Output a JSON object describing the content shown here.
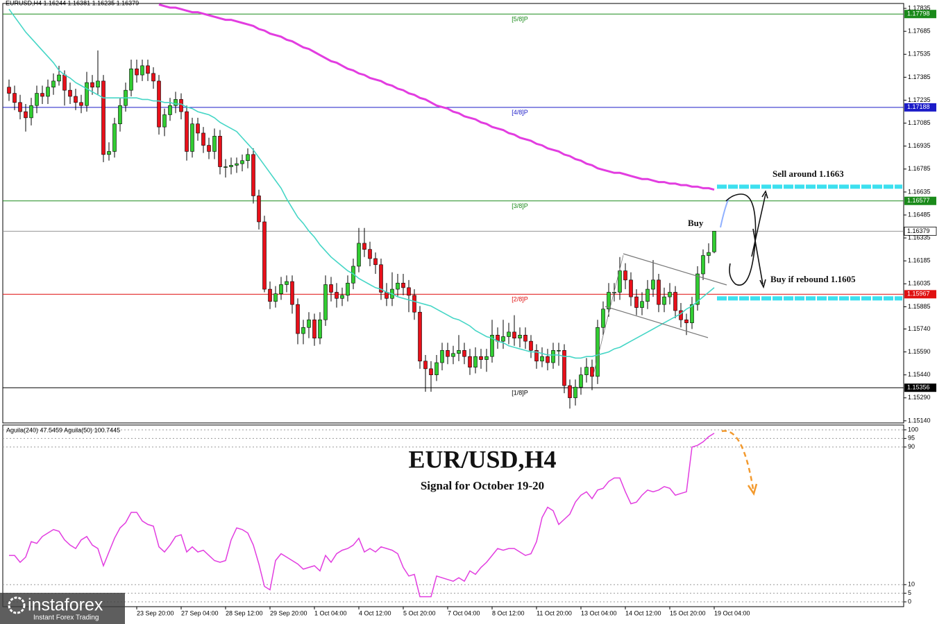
{
  "chart_data": [
    {
      "type": "candlestick",
      "header": "EURUSD,H4  1.16244 1.16381 1.16235 1.16379",
      "title": "EUR/USD,H4",
      "subtitle": "Signal for October 19-20",
      "annotations": [
        "Sell around 1.1663",
        "Buy",
        "Buy if rebound 1.1605"
      ],
      "categories": [
        null,
        null,
        null,
        null,
        null,
        null,
        null,
        null,
        null,
        null,
        null,
        null,
        null,
        null,
        null,
        null,
        null,
        null,
        null,
        null,
        null,
        null,
        null,
        "23 Sep 20:00",
        null,
        null,
        null,
        null,
        null,
        null,
        null,
        "27 Sep 04:00",
        null,
        null,
        null,
        null,
        null,
        null,
        null,
        "28 Sep 12:00",
        null,
        null,
        null,
        null,
        null,
        null,
        null,
        "29 Sep 20:00",
        null,
        null,
        null,
        null,
        null,
        null,
        null,
        "1 Oct 04:00",
        null,
        null,
        null,
        null,
        null,
        null,
        null,
        "4 Oct 12:00",
        null,
        null,
        null,
        null,
        null,
        null,
        null,
        "5 Oct 20:00",
        null,
        null,
        null,
        null,
        null,
        null,
        null,
        "7 Oct 04:00",
        null,
        null,
        null,
        null,
        null,
        null,
        null,
        "8 Oct 12:00",
        null,
        null,
        null,
        null,
        null,
        null,
        null,
        "11 Oct 20:00",
        null,
        null,
        null,
        null,
        null,
        null,
        null,
        "13 Oct 04:00",
        null,
        null,
        null,
        null,
        null,
        null,
        null,
        "14 Oct 12:00",
        null,
        null,
        null,
        null,
        null,
        null,
        null,
        "15 Oct 20:00",
        null,
        null,
        null,
        null,
        null,
        null,
        null,
        "19 Oct 04:00"
      ],
      "open": [
        1.1732,
        1.1728,
        1.1722,
        1.1716,
        1.1712,
        1.172,
        1.1728,
        1.1726,
        1.1732,
        1.1736,
        1.174,
        1.173,
        1.1726,
        1.1722,
        1.172,
        1.1735,
        1.1732,
        1.1736,
        1.1688,
        1.169,
        1.1708,
        1.172,
        1.173,
        1.1744,
        1.174,
        1.1746,
        1.1741,
        1.1736,
        1.1706,
        1.1714,
        1.172,
        1.1724,
        1.1716,
        1.169,
        1.1708,
        1.1702,
        1.1694,
        1.169,
        1.17,
        1.168,
        1.168,
        1.1681,
        1.1682,
        1.1684,
        1.1688,
        1.1661,
        1.1644,
        1.16,
        1.1592,
        1.1597,
        1.1603,
        1.1605,
        1.159,
        1.1571,
        1.1575,
        1.158,
        1.1568,
        1.158,
        1.1603,
        1.1598,
        1.1594,
        1.1596,
        1.1604,
        1.1615,
        1.163,
        1.1626,
        1.162,
        1.1616,
        1.1598,
        1.1594,
        1.16,
        1.1604,
        1.1601,
        1.1596,
        1.1585,
        1.1553,
        1.1548,
        1.1544,
        1.1552,
        1.156,
        1.1556,
        1.1558,
        1.156,
        1.1556,
        1.1549,
        1.1556,
        1.1554,
        1.1556,
        1.157,
        1.1566,
        1.1569,
        1.1572,
        1.1568,
        1.157,
        1.1566,
        1.156,
        1.1553,
        1.1556,
        1.1552,
        1.156,
        1.156,
        1.1537,
        1.1529,
        1.1536,
        1.1544,
        1.1549,
        1.1543,
        1.1575,
        1.1587,
        1.1598,
        1.1598,
        1.1612,
        1.1606,
        1.1595,
        1.1588,
        1.1592,
        1.16,
        1.1606,
        1.159,
        1.1595,
        1.1598,
        1.1586,
        1.158,
        1.1578,
        1.159,
        1.161,
        1.1622,
        1.16244
      ],
      "high": [
        1.1737,
        1.1733,
        1.1727,
        1.1721,
        1.1725,
        1.1733,
        1.1733,
        1.1737,
        1.1741,
        1.1746,
        1.1743,
        1.1735,
        1.1731,
        1.1727,
        1.1742,
        1.174,
        1.1756,
        1.174,
        1.1696,
        1.1712,
        1.1725,
        1.1735,
        1.175,
        1.175,
        1.175,
        1.175,
        1.1745,
        1.174,
        1.1718,
        1.1725,
        1.1729,
        1.1728,
        1.172,
        1.1712,
        1.1712,
        1.1706,
        1.1699,
        1.1705,
        1.1704,
        1.1685,
        1.1686,
        1.1686,
        1.1688,
        1.1692,
        1.1692,
        1.1665,
        1.1648,
        1.1605,
        1.1602,
        1.1608,
        1.1609,
        1.1609,
        1.1594,
        1.158,
        1.1585,
        1.1584,
        1.1585,
        1.1609,
        1.1608,
        1.1604,
        1.1601,
        1.1609,
        1.162,
        1.164,
        1.164,
        1.1631,
        1.1624,
        1.162,
        1.1604,
        1.1611,
        1.161,
        1.161,
        1.1606,
        1.16,
        1.1589,
        1.1557,
        1.1553,
        1.1557,
        1.1565,
        1.1565,
        1.1563,
        1.157,
        1.1565,
        1.1561,
        1.1562,
        1.1561,
        1.1561,
        1.158,
        1.1575,
        1.158,
        1.1578,
        1.1583,
        1.1575,
        1.1575,
        1.157,
        1.1564,
        1.1562,
        1.1561,
        1.1565,
        1.1565,
        1.1564,
        1.1541,
        1.1541,
        1.1549,
        1.1555,
        1.1554,
        1.158,
        1.1592,
        1.1604,
        1.1604,
        1.1621,
        1.1617,
        1.1611,
        1.16,
        1.1598,
        1.1606,
        1.1619,
        1.161,
        1.1601,
        1.1604,
        1.1602,
        1.1591,
        1.1584,
        1.1595,
        1.1615,
        1.1626,
        1.163,
        1.16381
      ],
      "low": [
        1.1723,
        1.1717,
        1.1711,
        1.1703,
        1.1707,
        1.1715,
        1.1721,
        1.1721,
        1.1727,
        1.1733,
        1.172,
        1.1721,
        1.1717,
        1.1715,
        1.1716,
        1.1727,
        1.1727,
        1.1683,
        1.1684,
        1.1686,
        1.1703,
        1.1716,
        1.1726,
        1.1735,
        1.1736,
        1.1736,
        1.1731,
        1.1701,
        1.17,
        1.171,
        1.1715,
        1.1711,
        1.1684,
        1.1686,
        1.1697,
        1.1689,
        1.1685,
        1.1685,
        1.1675,
        1.1673,
        1.1675,
        1.1676,
        1.1677,
        1.1679,
        1.1656,
        1.1639,
        1.1598,
        1.1587,
        1.1588,
        1.1593,
        1.1598,
        1.1584,
        1.1564,
        1.1564,
        1.1568,
        1.1563,
        1.1564,
        1.1576,
        1.1592,
        1.1588,
        1.1589,
        1.1592,
        1.16,
        1.1611,
        1.1621,
        1.1615,
        1.161,
        1.1593,
        1.1589,
        1.1589,
        1.1595,
        1.1596,
        1.1585,
        1.158,
        1.1548,
        1.1533,
        1.1533,
        1.154,
        1.1547,
        1.1551,
        1.1551,
        1.1553,
        1.1551,
        1.1544,
        1.1545,
        1.1548,
        1.1546,
        1.1552,
        1.1561,
        1.1561,
        1.1564,
        1.1563,
        1.1562,
        1.1561,
        1.1555,
        1.1548,
        1.1549,
        1.1547,
        1.1548,
        1.155,
        1.1532,
        1.1522,
        1.1524,
        1.1531,
        1.1539,
        1.1534,
        1.1538,
        1.157,
        1.1582,
        1.1592,
        1.1593,
        1.16,
        1.1589,
        1.1583,
        1.1583,
        1.1587,
        1.1595,
        1.1585,
        1.1585,
        1.159,
        1.1581,
        1.1575,
        1.157,
        1.1574,
        1.1586,
        1.1606,
        1.1617,
        1.16235
      ],
      "close": [
        1.1728,
        1.1722,
        1.1716,
        1.1712,
        1.172,
        1.1728,
        1.1726,
        1.1732,
        1.1736,
        1.174,
        1.173,
        1.1726,
        1.1722,
        1.172,
        1.1735,
        1.1732,
        1.1736,
        1.1688,
        1.169,
        1.1708,
        1.172,
        1.173,
        1.1744,
        1.174,
        1.1746,
        1.1741,
        1.1736,
        1.1706,
        1.1714,
        1.172,
        1.1724,
        1.1716,
        1.169,
        1.1708,
        1.1702,
        1.1694,
        1.169,
        1.17,
        1.168,
        1.168,
        1.1681,
        1.1682,
        1.1684,
        1.1688,
        1.1661,
        1.1644,
        1.16,
        1.1592,
        1.1597,
        1.1603,
        1.1605,
        1.159,
        1.1571,
        1.1575,
        1.158,
        1.1568,
        1.158,
        1.1603,
        1.1598,
        1.1594,
        1.1596,
        1.1604,
        1.1615,
        1.163,
        1.1626,
        1.162,
        1.1616,
        1.1598,
        1.1594,
        1.16,
        1.1604,
        1.1601,
        1.1596,
        1.1585,
        1.1553,
        1.1548,
        1.1544,
        1.1552,
        1.156,
        1.1556,
        1.1558,
        1.156,
        1.1556,
        1.1549,
        1.1556,
        1.1554,
        1.1556,
        1.157,
        1.1566,
        1.1569,
        1.1572,
        1.1568,
        1.157,
        1.1566,
        1.156,
        1.1553,
        1.1556,
        1.1552,
        1.156,
        1.156,
        1.1537,
        1.1529,
        1.1536,
        1.1544,
        1.1549,
        1.1543,
        1.1575,
        1.1587,
        1.1598,
        1.1598,
        1.1612,
        1.1606,
        1.1595,
        1.1588,
        1.1592,
        1.16,
        1.1606,
        1.159,
        1.1595,
        1.1598,
        1.1586,
        1.158,
        1.1578,
        1.159,
        1.161,
        1.1622,
        1.1624,
        1.16379
      ],
      "up_color": "#32cd32",
      "down_color": "#e8101a",
      "series": [
        {
          "color": "#e23de0",
          "width": 3,
          "values": [
            null,
            null,
            null,
            null,
            null,
            null,
            null,
            null,
            null,
            null,
            null,
            null,
            null,
            null,
            null,
            null,
            null,
            null,
            null,
            null,
            null,
            null,
            null,
            null,
            null,
            null,
            null,
            1.1786,
            1.1785,
            1.1784,
            1.1784,
            1.1783,
            1.1782,
            1.1781,
            1.1781,
            1.178,
            1.1779,
            1.1778,
            1.1777,
            1.1776,
            1.1776,
            1.1775,
            1.1774,
            1.1773,
            1.1772,
            1.177,
            1.1769,
            1.1767,
            1.1766,
            1.1765,
            1.1763,
            1.1762,
            1.176,
            1.1758,
            1.1757,
            1.1755,
            1.1753,
            1.1751,
            1.1749,
            1.1748,
            1.1746,
            1.1744,
            1.1743,
            1.1741,
            1.174,
            1.1738,
            1.1737,
            1.1736,
            1.1734,
            1.1733,
            1.1731,
            1.173,
            1.1728,
            1.1727,
            1.1725,
            1.1724,
            1.1722,
            1.172,
            1.1719,
            1.1718,
            1.1716,
            1.1715,
            1.1713,
            1.1712,
            1.1711,
            1.1709,
            1.1708,
            1.1706,
            1.1705,
            1.1704,
            1.1702,
            1.1701,
            1.1699,
            1.1698,
            1.1697,
            1.1695,
            1.1694,
            1.1692,
            1.1691,
            1.169,
            1.1688,
            1.1687,
            1.1685,
            1.1684,
            1.1682,
            1.1681,
            1.1679,
            1.1678,
            1.1677,
            1.1676,
            1.1676,
            1.1675,
            1.1674,
            1.1673,
            1.1672,
            1.1672,
            1.1671,
            1.167,
            1.167,
            1.1669,
            1.1669,
            1.1668,
            1.1668,
            1.1667,
            1.1667,
            1.1666,
            1.1666,
            1.1665
          ]
        },
        {
          "color": "#45d6c6",
          "width": 1.6,
          "values": [
            1.1783,
            1.1778,
            1.1773,
            1.1768,
            1.1764,
            1.176,
            1.1756,
            1.1752,
            1.1748,
            1.1743,
            1.174,
            1.1738,
            1.1735,
            1.1733,
            1.1731,
            1.1729,
            1.1727,
            1.1725,
            1.1725,
            1.1725,
            1.1725,
            1.1725,
            1.1725,
            1.1725,
            1.1724,
            1.1724,
            1.1723,
            1.1723,
            1.1722,
            1.1722,
            1.1721,
            1.1721,
            1.1719,
            1.1718,
            1.1716,
            1.1715,
            1.1714,
            1.1712,
            1.1709,
            1.1707,
            1.1705,
            1.1703,
            1.1699,
            1.1695,
            1.1691,
            1.1686,
            1.1681,
            1.1676,
            1.1671,
            1.1666,
            1.1659,
            1.1653,
            1.1647,
            1.1643,
            1.1638,
            1.1634,
            1.1629,
            1.1625,
            1.1621,
            1.1618,
            1.1615,
            1.1612,
            1.161,
            1.1607,
            1.1605,
            1.1603,
            1.1601,
            1.16,
            1.1598,
            1.1597,
            1.1595,
            1.1594,
            1.1593,
            1.1592,
            1.1591,
            1.159,
            1.1589,
            1.1587,
            1.1585,
            1.1583,
            1.1581,
            1.158,
            1.1578,
            1.1576,
            1.1573,
            1.1571,
            1.1569,
            1.1568,
            1.1566,
            1.1565,
            1.1563,
            1.1562,
            1.1561,
            1.156,
            1.1559,
            1.1559,
            1.1558,
            1.1557,
            1.1557,
            1.1557,
            1.1556,
            1.1556,
            1.1555,
            1.1555,
            1.1556,
            1.1556,
            1.1557,
            1.1558,
            1.1559,
            1.1561,
            1.1562,
            1.1564,
            1.1566,
            1.1568,
            1.157,
            1.1572,
            1.1574,
            1.1576,
            1.1578,
            1.158,
            1.1582,
            1.1584,
            1.1587,
            1.1589,
            1.1592,
            1.1595,
            1.1598,
            1.1601
          ]
        }
      ],
      "levels": [
        {
          "label": "[5/8]P",
          "value": 1.17798,
          "color": "#1a8a1a"
        },
        {
          "label": "[4/8]P",
          "value": 1.17188,
          "color": "#1c1cc8"
        },
        {
          "label": "[3/8]P",
          "value": 1.16577,
          "color": "#1a8a1a"
        },
        {
          "label": "[2/8]P",
          "value": 1.15967,
          "color": "#e01010"
        },
        {
          "label": "[1/8]P",
          "value": 1.15356,
          "color": "#000000"
        }
      ],
      "bid": 1.16379,
      "zones": [
        1.1667,
        1.1594
      ],
      "zone_color": "#3de0ef",
      "ylim": [
        1.15126,
        1.17867
      ],
      "yticks": [
        1.17835,
        1.17685,
        1.17535,
        1.17385,
        1.17235,
        1.17085,
        1.16935,
        1.16785,
        1.16635,
        1.16485,
        1.16335,
        1.16185,
        1.16035,
        1.15885,
        {
          "value": 1.1574,
          "label": "1.15740"
        },
        {
          "value": 1.1559,
          "label": "1.15590"
        },
        {
          "value": 1.1544,
          "label": "1.15440"
        },
        {
          "value": 1.1529,
          "label": "1.15290"
        },
        {
          "value": 1.1514,
          "label": "1.15140"
        }
      ]
    },
    {
      "type": "line",
      "header": "Aguila(240) 47.5459  Aguila(50) 100.7445",
      "color": "#e23de0",
      "values": [
        27,
        27,
        23,
        26,
        35,
        34,
        38,
        40,
        42,
        41,
        36,
        33,
        31,
        36,
        38,
        33,
        31,
        21,
        29,
        37,
        43,
        46,
        52,
        52,
        47,
        45,
        44,
        32,
        29,
        33,
        38,
        39,
        29,
        32,
        29,
        30,
        27,
        24,
        23,
        24,
        36,
        43,
        42,
        40,
        33,
        22,
        9,
        7,
        24,
        28,
        26,
        24,
        22,
        19,
        20,
        21,
        18,
        27,
        23,
        28,
        30,
        31,
        33,
        37,
        29,
        31,
        29,
        32,
        31,
        30,
        28,
        20,
        15,
        16,
        3,
        3,
        3,
        15,
        14,
        13,
        12,
        14,
        12,
        18,
        16,
        20,
        23,
        27,
        31,
        30,
        31,
        31,
        29,
        27,
        28,
        35,
        49,
        55,
        53,
        45,
        48,
        51,
        58,
        62,
        64,
        60,
        65,
        66,
        70,
        72,
        72,
        64,
        57,
        58,
        62,
        65,
        64,
        65,
        67,
        66,
        62,
        63,
        64,
        90,
        91,
        93,
        96,
        98
      ],
      "ylim": [
        -2.8,
        102.8
      ],
      "yticks": [
        100,
        95,
        90,
        10,
        5,
        0
      ],
      "grid": true
    }
  ],
  "brand": {
    "name": "instaforex",
    "tagline": "Instant Forex Trading"
  }
}
